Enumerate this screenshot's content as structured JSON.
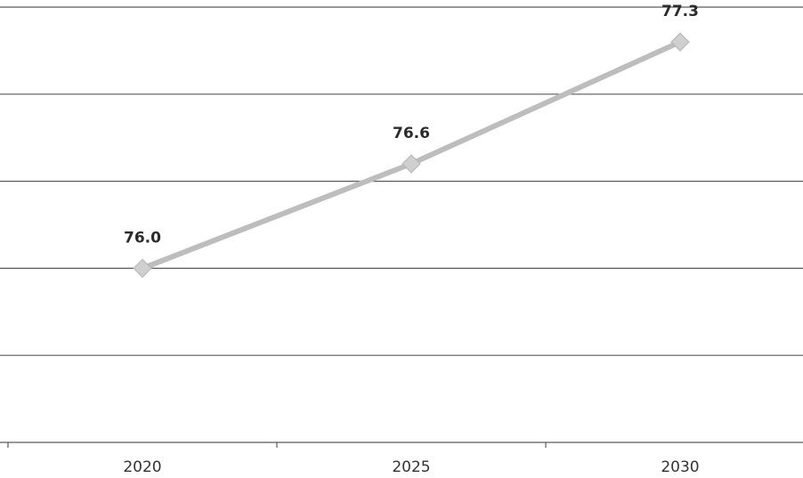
{
  "chart_data": {
    "type": "line",
    "categories": [
      "2020",
      "2025",
      "2030"
    ],
    "values": [
      76.0,
      76.6,
      77.3
    ],
    "value_labels": [
      "76.0",
      "76.6",
      "77.3"
    ],
    "color": "#bdbdbd",
    "ylim": [
      75,
      77.5
    ],
    "yticks": [
      75,
      75.5,
      76,
      76.5,
      77,
      77.5
    ],
    "grid": true
  }
}
